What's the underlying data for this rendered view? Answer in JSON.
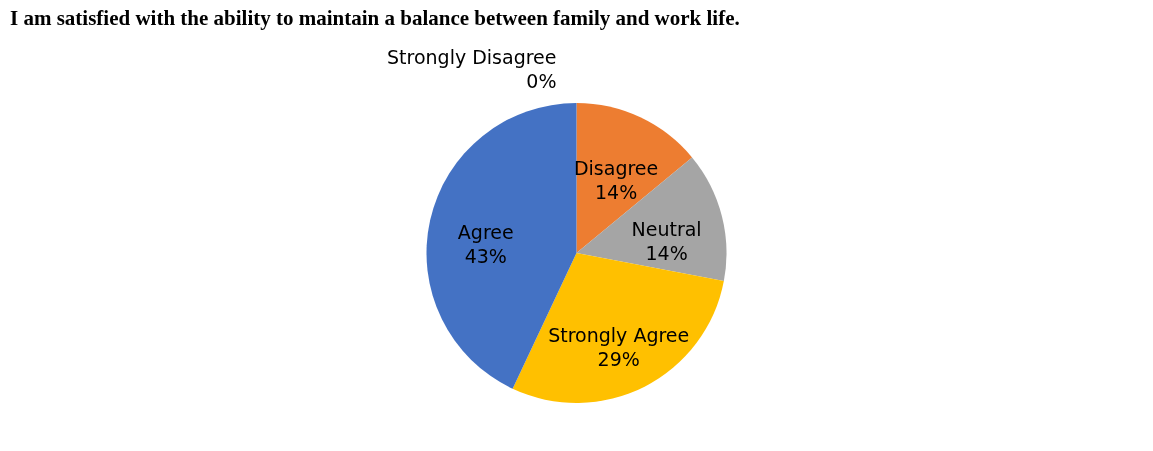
{
  "chart_data": {
    "type": "pie",
    "title": "I am satisfied with the ability to maintain a balance between family and work life.",
    "categories": [
      "Strongly Disagree",
      "Disagree",
      "Neutral",
      "Strongly Agree",
      "Agree"
    ],
    "values": [
      0,
      14,
      14,
      29,
      43
    ],
    "value_labels": [
      "0%",
      "14%",
      "14%",
      "29%",
      "43%"
    ],
    "colors": [
      "#5b9bd5",
      "#ed7d31",
      "#a5a5a5",
      "#ffc000",
      "#4472c4"
    ],
    "legend": false
  }
}
